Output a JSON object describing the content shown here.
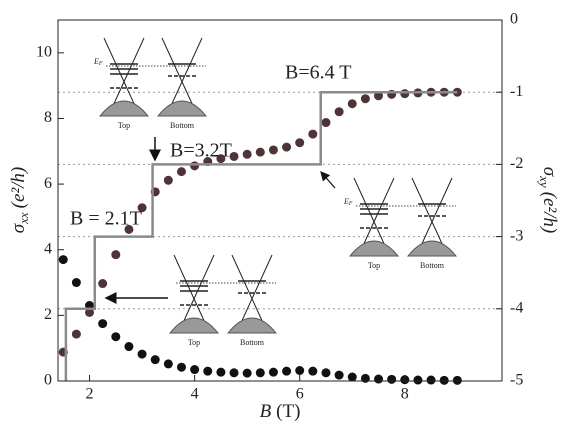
{
  "chart_data": {
    "type": "scatter",
    "x_label": {
      "symbol": "B",
      "unit": "(T)"
    },
    "y_label": {
      "symbol": "σ",
      "sub": "xx",
      "unit": "(e²/h)"
    },
    "y2_label": {
      "symbol": "σ",
      "sub": "xy",
      "unit": "(e²/h)"
    },
    "xlim": [
      1.4,
      9.85
    ],
    "xticks": [
      2,
      4,
      6,
      8
    ],
    "ylim": [
      0,
      11
    ],
    "yticks": [
      0,
      2,
      4,
      6,
      8,
      10
    ],
    "y2lim": [
      -5,
      0
    ],
    "y2ticks": [
      0,
      -1,
      -2,
      -3,
      -4,
      -5
    ],
    "y2_grid": true,
    "series": [
      {
        "type": "scatter",
        "color": "#111111",
        "x": [
          1.5,
          1.75,
          2,
          2.25,
          2.5,
          2.75,
          3,
          3.25,
          3.5,
          3.75,
          4,
          4.25,
          4.5,
          4.75,
          5,
          5.25,
          5.5,
          5.75,
          6,
          6.25,
          6.5,
          6.75,
          7,
          7.25,
          7.5,
          7.75,
          8,
          8.25,
          8.5,
          8.75,
          9
        ],
        "values": [
          3.7,
          3.0,
          2.3,
          1.75,
          1.35,
          1.05,
          0.82,
          0.65,
          0.52,
          0.42,
          0.35,
          0.3,
          0.27,
          0.25,
          0.24,
          0.25,
          0.27,
          0.3,
          0.32,
          0.3,
          0.25,
          0.18,
          0.12,
          0.08,
          0.06,
          0.05,
          0.04,
          0.03,
          0.03,
          0.02,
          0.02
        ]
      },
      {
        "type": "scatter",
        "color": "#4e3436",
        "axis": "y2",
        "x": [
          1.5,
          1.75,
          2,
          2.25,
          2.5,
          2.75,
          3,
          3.25,
          3.5,
          3.75,
          4,
          4.25,
          4.5,
          4.75,
          5,
          5.25,
          5.5,
          5.75,
          6,
          6.25,
          6.5,
          6.75,
          7,
          7.25,
          7.5,
          7.75,
          8,
          8.25,
          8.5,
          8.75,
          9
        ],
        "values": [
          -4.6,
          -4.35,
          -4.05,
          -3.65,
          -3.25,
          -2.9,
          -2.6,
          -2.38,
          -2.22,
          -2.1,
          -2.02,
          -1.96,
          -1.92,
          -1.89,
          -1.86,
          -1.83,
          -1.8,
          -1.76,
          -1.7,
          -1.58,
          -1.42,
          -1.27,
          -1.16,
          -1.09,
          -1.05,
          -1.03,
          -1.02,
          -1.01,
          -1.0,
          -1.0,
          -1.0
        ]
      },
      {
        "type": "line",
        "color": "#8a8a8a",
        "axis": "y2",
        "x": [
          1.55,
          1.55,
          2.1,
          2.1,
          3.2,
          3.2,
          6.4,
          6.4,
          9.0
        ],
        "values": [
          -5,
          -4,
          -4,
          -3,
          -3,
          -2,
          -2,
          -1,
          -1
        ]
      }
    ],
    "annotations": [
      "B=6.4 T",
      "B=3.2T",
      "B = 2.1T"
    ],
    "insets": [
      {
        "labels": [
          "Top",
          "Bottom"
        ],
        "fermi": [
          "E",
          "F"
        ]
      },
      {
        "labels": [
          "Top",
          "Bottom"
        ],
        "fermi": [
          "E",
          "F"
        ]
      },
      {
        "labels": [
          "Top",
          "Bottom"
        ]
      }
    ]
  }
}
